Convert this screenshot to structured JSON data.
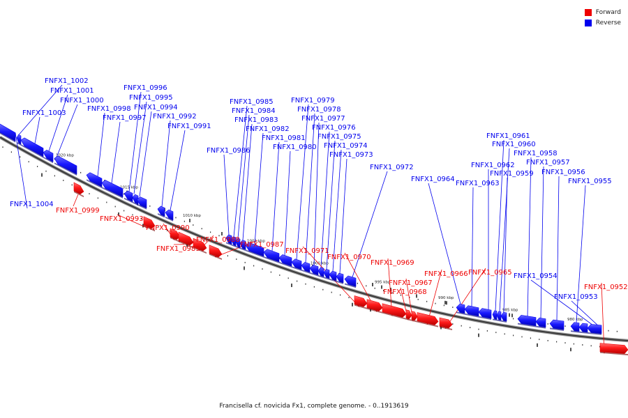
{
  "legend": {
    "forward_label": "Forward",
    "reverse_label": "Reverse",
    "forward_color": "#ee0000",
    "reverse_color": "#0000ee"
  },
  "caption": "Francisella cf. novicida Fx1, complete genome. - 0..1913619",
  "ticks": [
    {
      "kbp": 1020,
      "label": "1020 kbp"
    },
    {
      "kbp": 1015,
      "label": "1015 kbp"
    },
    {
      "kbp": 1010,
      "label": "1010 kbp"
    },
    {
      "kbp": 1005,
      "label": "1005 kbp"
    },
    {
      "kbp": 1000,
      "label": "1000 kbp"
    },
    {
      "kbp": 995,
      "label": "995 kbp"
    },
    {
      "kbp": 990,
      "label": "990 kbp"
    },
    {
      "kbp": 985,
      "label": "985 kbp"
    },
    {
      "kbp": 980,
      "label": "980 kbp"
    }
  ],
  "genes": [
    {
      "name": "FNFX1_1004",
      "strand": "reverse"
    },
    {
      "name": "FNFX1_1003",
      "strand": "reverse"
    },
    {
      "name": "FNFX1_1002",
      "strand": "reverse"
    },
    {
      "name": "FNFX1_1001",
      "strand": "reverse"
    },
    {
      "name": "FNFX1_1000",
      "strand": "reverse"
    },
    {
      "name": "FNFX1_0999",
      "strand": "forward"
    },
    {
      "name": "FNFX1_0998",
      "strand": "reverse"
    },
    {
      "name": "FNFX1_0997",
      "strand": "reverse"
    },
    {
      "name": "FNFX1_0996",
      "strand": "reverse"
    },
    {
      "name": "FNFX1_0995",
      "strand": "reverse"
    },
    {
      "name": "FNFX1_0994",
      "strand": "reverse"
    },
    {
      "name": "FNFX1_0993",
      "strand": "forward"
    },
    {
      "name": "FNFX1_0992",
      "strand": "reverse"
    },
    {
      "name": "FNFX1_0991",
      "strand": "reverse"
    },
    {
      "name": "FNFX1_0990",
      "strand": "forward"
    },
    {
      "name": "FNFX1_0989",
      "strand": "forward"
    },
    {
      "name": "FNFX1_0988",
      "strand": "forward"
    },
    {
      "name": "FNFX1_0987",
      "strand": "forward"
    },
    {
      "name": "FNFX1_0986",
      "strand": "reverse"
    },
    {
      "name": "FNFX1_0985",
      "strand": "reverse"
    },
    {
      "name": "FNFX1_0984",
      "strand": "reverse"
    },
    {
      "name": "FNFX1_0983",
      "strand": "reverse"
    },
    {
      "name": "FNFX1_0982",
      "strand": "reverse"
    },
    {
      "name": "FNFX1_0981",
      "strand": "reverse"
    },
    {
      "name": "FNFX1_0980",
      "strand": "reverse"
    },
    {
      "name": "FNFX1_0979",
      "strand": "reverse"
    },
    {
      "name": "FNFX1_0978",
      "strand": "reverse"
    },
    {
      "name": "FNFX1_0977",
      "strand": "reverse"
    },
    {
      "name": "FNFX1_0976",
      "strand": "reverse"
    },
    {
      "name": "FNFX1_0975",
      "strand": "reverse"
    },
    {
      "name": "FNFX1_0974",
      "strand": "reverse"
    },
    {
      "name": "FNFX1_0973",
      "strand": "reverse"
    },
    {
      "name": "FNFX1_0972",
      "strand": "reverse"
    },
    {
      "name": "FNFX1_0971",
      "strand": "forward"
    },
    {
      "name": "FNFX1_0970",
      "strand": "forward"
    },
    {
      "name": "FNFX1_0969",
      "strand": "forward"
    },
    {
      "name": "FNFX1_0968",
      "strand": "forward"
    },
    {
      "name": "FNFX1_0967",
      "strand": "forward"
    },
    {
      "name": "FNFX1_0966",
      "strand": "forward"
    },
    {
      "name": "FNFX1_0965",
      "strand": "forward"
    },
    {
      "name": "FNFX1_0964",
      "strand": "reverse"
    },
    {
      "name": "FNFX1_0963",
      "strand": "reverse"
    },
    {
      "name": "FNFX1_0962",
      "strand": "reverse"
    },
    {
      "name": "FNFX1_0961",
      "strand": "reverse"
    },
    {
      "name": "FNFX1_0960",
      "strand": "reverse"
    },
    {
      "name": "FNFX1_0959",
      "strand": "reverse"
    },
    {
      "name": "FNFX1_0958",
      "strand": "reverse"
    },
    {
      "name": "FNFX1_0957",
      "strand": "reverse"
    },
    {
      "name": "FNFX1_0956",
      "strand": "reverse"
    },
    {
      "name": "FNFX1_0955",
      "strand": "reverse"
    },
    {
      "name": "FNFX1_0954",
      "strand": "reverse"
    },
    {
      "name": "FNFX1_0953",
      "strand": "reverse"
    },
    {
      "name": "FNFX1_0952",
      "strand": "forward"
    }
  ]
}
